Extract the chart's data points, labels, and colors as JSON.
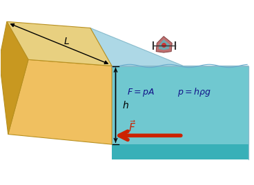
{
  "bg_color": "#ffffff",
  "water_surface_color": "#add8e6",
  "water_front_color": "#7dd0d8",
  "water_bottom_color": "#40b8c0",
  "dam_face_color": "#f0c060",
  "dam_top_color": "#e8d080",
  "dam_side_color": "#c89820",
  "arrow_color": "#cc2200",
  "label_color": "#000000",
  "formula_color": "#111188",
  "fig_width": 3.68,
  "fig_height": 2.68,
  "dpi": 100
}
